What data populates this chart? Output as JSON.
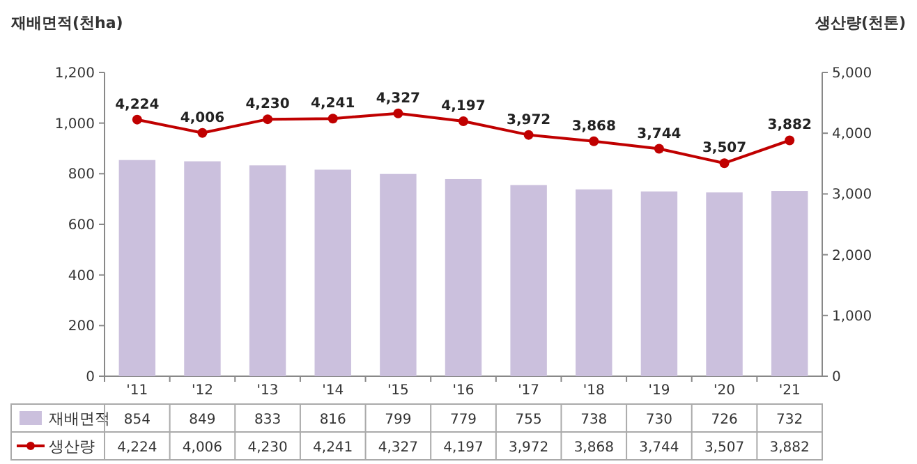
{
  "chart_data": {
    "type": "bar",
    "ylabel": "재배면적(천ha)",
    "y2label": "생산량(천톤)",
    "categories": [
      "'11",
      "'12",
      "'13",
      "'14",
      "'15",
      "'16",
      "'17",
      "'18",
      "'19",
      "'20",
      "'21"
    ],
    "series": [
      {
        "name": "재배면적",
        "color": "#cbc0dd",
        "values": [
          854,
          849,
          833,
          816,
          799,
          779,
          755,
          738,
          730,
          726,
          732
        ],
        "value_labels": [
          "854",
          "849",
          "833",
          "816",
          "799",
          "779",
          "755",
          "738",
          "730",
          "726",
          "732"
        ]
      },
      {
        "name": "생산량",
        "type": "line",
        "axis": "y2",
        "color": "#c00000",
        "marker": "circle",
        "values": [
          4224,
          4006,
          4230,
          4241,
          4327,
          4197,
          3972,
          3868,
          3744,
          3507,
          3882
        ],
        "value_labels": [
          "4,224",
          "4,006",
          "4,230",
          "4,241",
          "4,327",
          "4,197",
          "3,972",
          "3,868",
          "3,744",
          "3,507",
          "3,882"
        ]
      }
    ],
    "ylim": [
      0,
      1200
    ],
    "yticks": [
      0,
      200,
      400,
      600,
      800,
      {
        "value": 1000,
        "label": "1,000"
      },
      {
        "value": 1200,
        "label": "1,200"
      }
    ],
    "y2lim": [
      0,
      5000
    ],
    "y2ticks": [
      0,
      {
        "value": 1000,
        "label": "1,000"
      },
      {
        "value": 2000,
        "label": "2,000"
      },
      {
        "value": 3000,
        "label": "3,000"
      },
      {
        "value": 4000,
        "label": "4,000"
      },
      {
        "value": 5000,
        "label": "5,000"
      }
    ],
    "legend": "bottom"
  }
}
